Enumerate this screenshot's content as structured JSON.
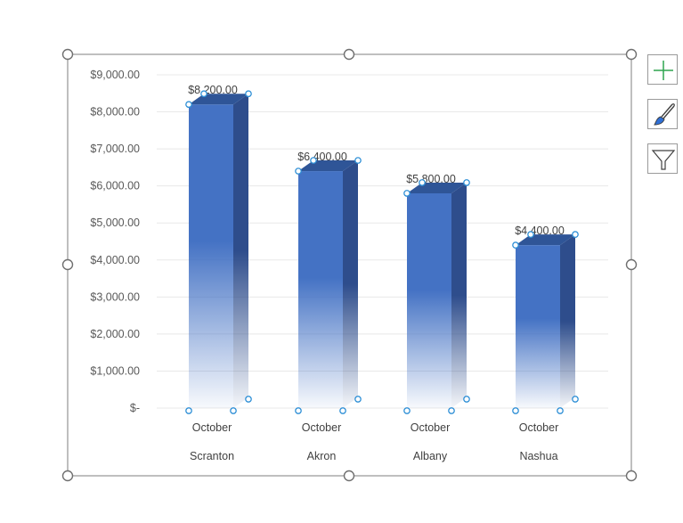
{
  "chart_data": {
    "type": "bar",
    "style": "3d-column-gradient",
    "categories": [
      {
        "period": "October",
        "location": "Scranton"
      },
      {
        "period": "October",
        "location": "Akron"
      },
      {
        "period": "October",
        "location": "Albany"
      },
      {
        "period": "October",
        "location": "Nashua"
      }
    ],
    "values": [
      8200,
      6400,
      5800,
      4400
    ],
    "data_labels": [
      "$8,200.00",
      "$6,400.00",
      "$5,800.00",
      "$4,400.00"
    ],
    "ylim": [
      0,
      9000
    ],
    "ytick_values": [
      0,
      1000,
      2000,
      3000,
      4000,
      5000,
      6000,
      7000,
      8000,
      9000
    ],
    "ytick_labels": [
      "$-",
      "$1,000.00",
      "$2,000.00",
      "$3,000.00",
      "$4,000.00",
      "$5,000.00",
      "$6,000.00",
      "$7,000.00",
      "$8,000.00",
      "$9,000.00"
    ],
    "grid": true,
    "legend": "none",
    "title": ""
  },
  "colors": {
    "bar_front": "#4472c4",
    "bar_side": "#2e4d8c",
    "bar_top": "#2f5597",
    "gridline": "#e8e8e8",
    "frame": "#7f7f7f",
    "handle_point": "#2e8fd6",
    "accent_plus": "#2ea44f",
    "accent_brush": "#2e6fd6"
  },
  "side_buttons": [
    {
      "name": "chart-elements",
      "icon": "plus-icon"
    },
    {
      "name": "chart-styles",
      "icon": "paintbrush-icon"
    },
    {
      "name": "chart-filters",
      "icon": "funnel-icon"
    }
  ]
}
